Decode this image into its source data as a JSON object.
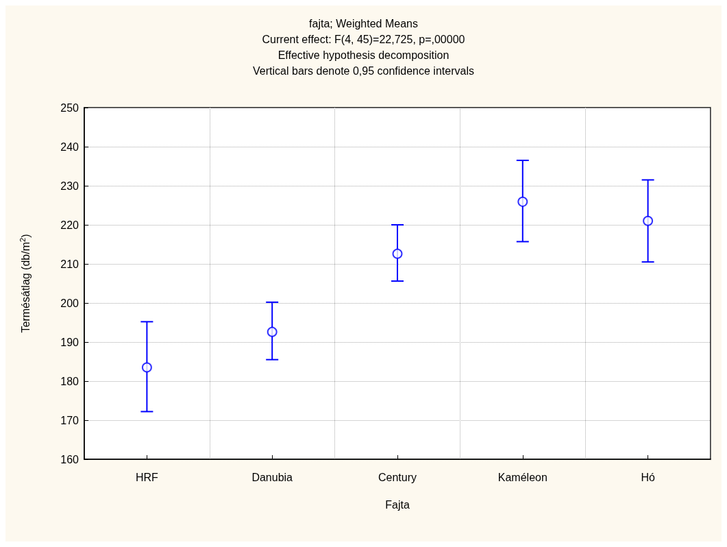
{
  "chart_data": {
    "type": "scatter",
    "title": "fajta; Weighted Means",
    "subtitle": "Current effect: F(4, 45)=22,725, p=,00000\nEffective hypothesis decomposition\nVertical bars denote 0,95 confidence intervals",
    "xlabel": "Fajta",
    "ylabel": "Termésátlag (db/m$^{2}$)",
    "categories": [
      "HRF",
      "Danubia",
      "Century",
      "Kaméleon",
      "Hó"
    ],
    "series": [
      {
        "color": "#0000ff",
        "values": [
          183.5,
          192.6,
          212.6,
          225.9,
          221.0
        ],
        "errors": [
          [
            172.2,
            195.2
          ],
          [
            185.5,
            200.2
          ],
          [
            205.6,
            220.0
          ],
          [
            215.7,
            236.5
          ],
          [
            210.5,
            231.5
          ]
        ]
      }
    ],
    "ylim": [
      160,
      250
    ],
    "yticks": [
      160,
      170,
      180,
      190,
      200,
      210,
      220,
      230,
      240,
      250
    ],
    "grid": true,
    "marker": "circle"
  }
}
